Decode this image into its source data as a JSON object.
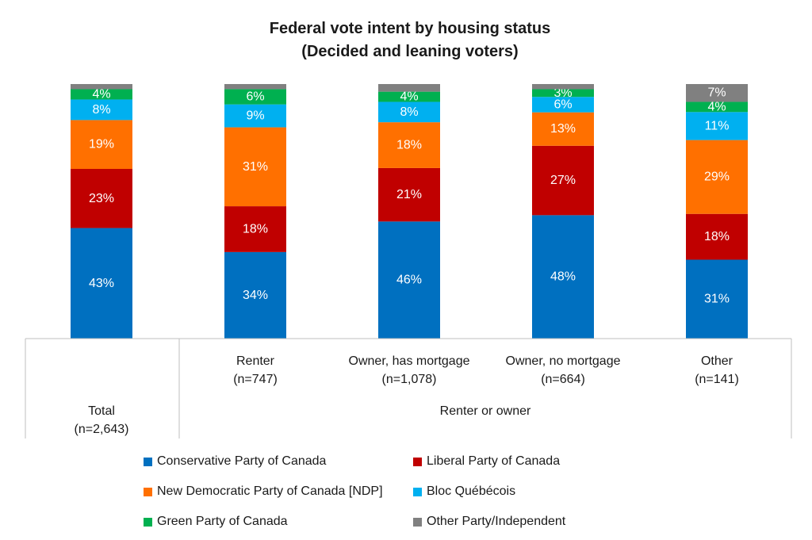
{
  "chart_data": {
    "type": "bar",
    "stacked": true,
    "title": "Federal vote intent by housing status",
    "subtitle": "(Decided and leaning voters)",
    "categories": [
      {
        "label": "Total",
        "n": "(n=2,643)"
      },
      {
        "label": "Renter",
        "n": "(n=747)"
      },
      {
        "label": "Owner, has mortgage",
        "n": "(n=1,078)"
      },
      {
        "label": "Owner, no mortgage",
        "n": "(n=664)"
      },
      {
        "label": "Other",
        "n": "(n=141)"
      }
    ],
    "group_label": "Renter or owner",
    "series": [
      {
        "name": "Conservative Party of Canada",
        "color": "#0070C0",
        "values": [
          43,
          34,
          46,
          48,
          31
        ]
      },
      {
        "name": "Liberal Party of Canada",
        "color": "#C00000",
        "values": [
          23,
          18,
          21,
          27,
          18
        ]
      },
      {
        "name": "New Democratic Party of Canada [NDP]",
        "color": "#FF7000",
        "values": [
          19,
          31,
          18,
          13,
          29
        ]
      },
      {
        "name": "Bloc Québécois",
        "color": "#00B0F0",
        "values": [
          8,
          9,
          8,
          6,
          11
        ]
      },
      {
        "name": "Green Party of Canada",
        "color": "#00B050",
        "values": [
          4,
          6,
          4,
          3,
          4
        ]
      },
      {
        "name": "Other Party/Independent",
        "color": "#808080",
        "values": [
          2,
          2,
          3,
          2,
          7
        ]
      }
    ],
    "hidden_labels": [
      [
        false,
        false,
        false,
        false,
        false,
        false
      ],
      [
        false,
        false,
        false,
        false,
        false,
        false
      ],
      [
        false,
        false,
        false,
        false,
        false,
        false
      ],
      [
        false,
        false,
        false,
        false,
        false,
        false
      ],
      [
        false,
        false,
        false,
        false,
        false,
        false
      ]
    ],
    "value_suffix": "%",
    "ylim": [
      0,
      100
    ],
    "legend_position": "bottom",
    "grid": false
  }
}
